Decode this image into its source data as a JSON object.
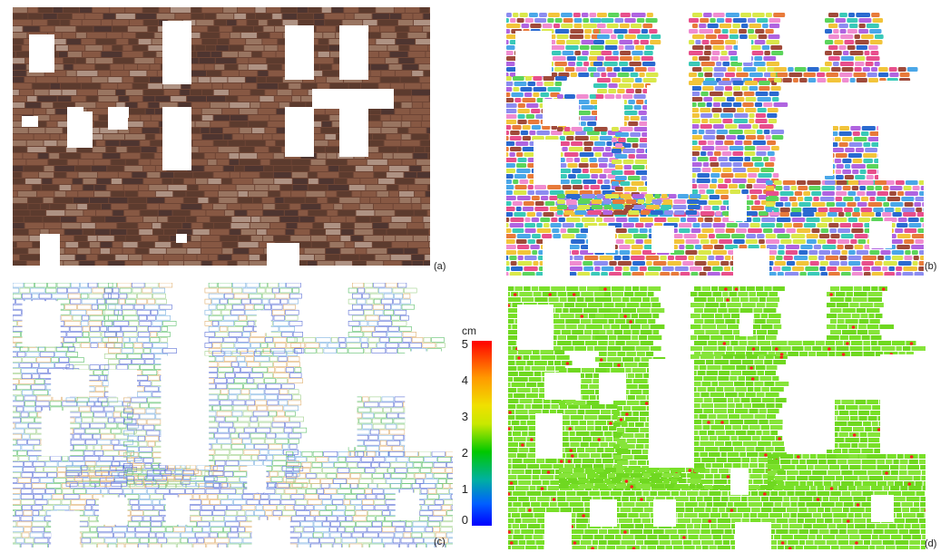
{
  "panels": [
    {
      "id": "a",
      "label": "(a)",
      "style": "photo"
    },
    {
      "id": "b",
      "label": "(b)",
      "style": "segmentation"
    },
    {
      "id": "c",
      "label": "(c)",
      "style": "edges"
    },
    {
      "id": "d",
      "label": "(d)",
      "style": "deviation"
    }
  ],
  "colorbar": {
    "unit": "cm",
    "ticks": [
      "5",
      "4",
      "3",
      "2",
      "1",
      "0"
    ],
    "colors": {
      "max": "#ff0000",
      "mid_high": "#f0e000",
      "mid": "#00c800",
      "min": "#0000ff"
    }
  },
  "colors": {
    "photo_stone": "#7a4a38",
    "edges_blue": "#5b6fd6",
    "edges_green": "#5bbf6a",
    "deviation_green": "#78e028",
    "deviation_red": "#ff2020"
  }
}
